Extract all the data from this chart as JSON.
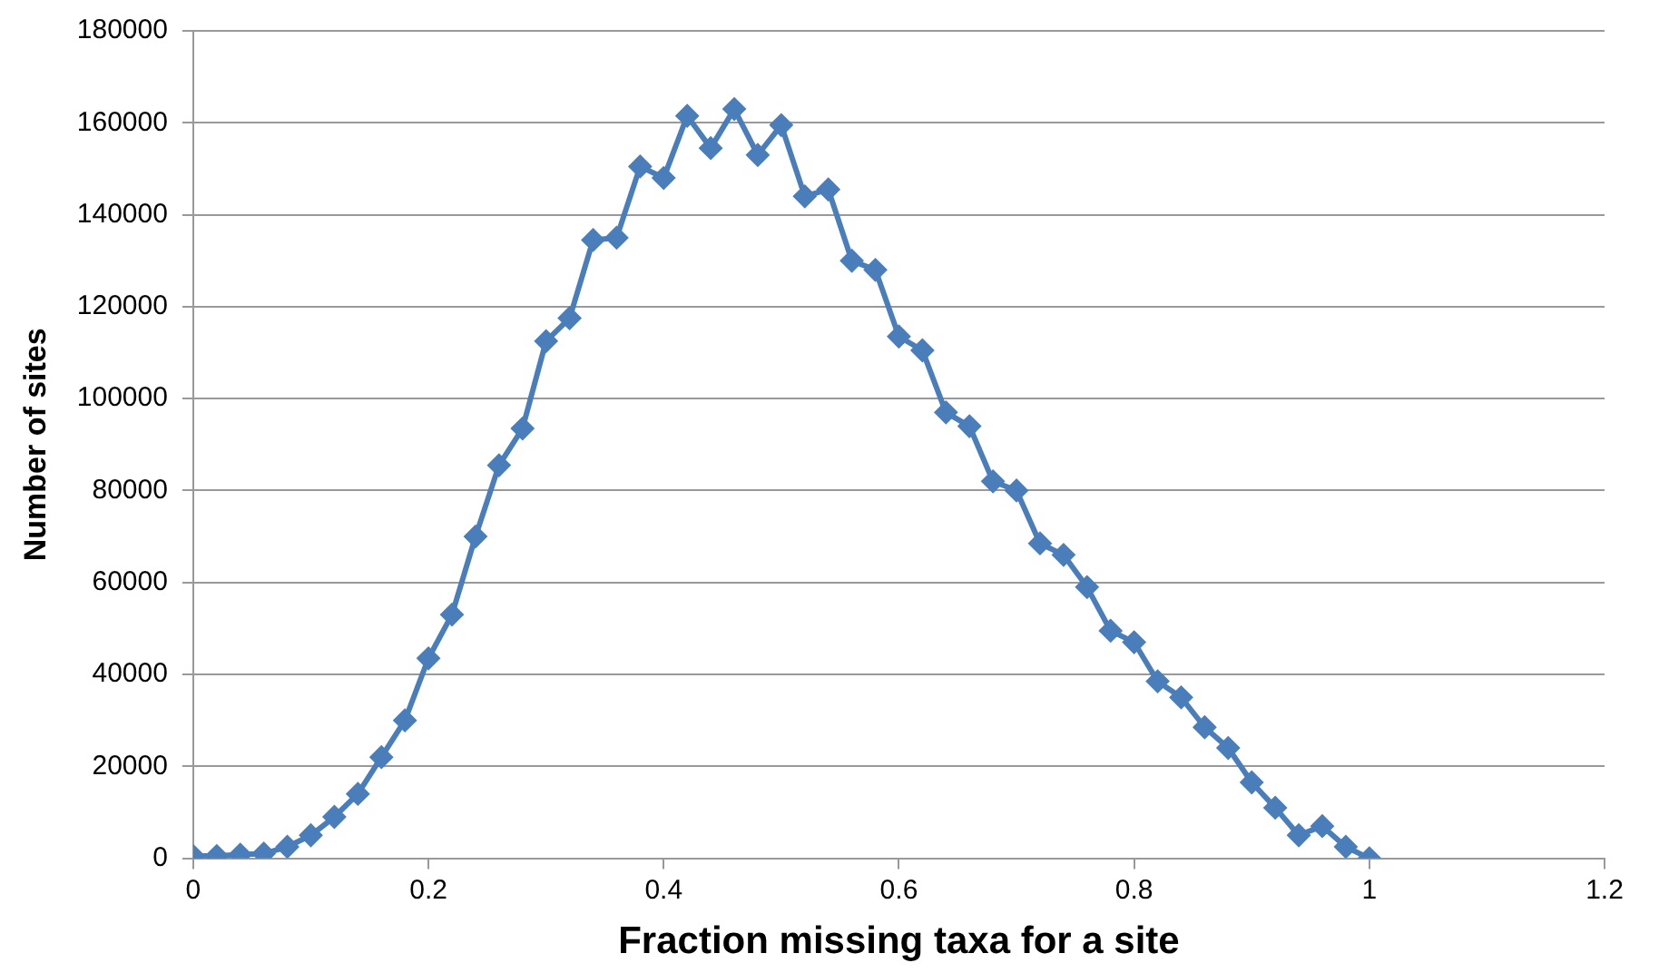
{
  "chart_data": {
    "type": "line",
    "xlabel": "Fraction missing taxa for a site",
    "ylabel": "Number of sites",
    "x": [
      0,
      0.02,
      0.04,
      0.06,
      0.08,
      0.1,
      0.12,
      0.14,
      0.16,
      0.18,
      0.2,
      0.22,
      0.24,
      0.26,
      0.28,
      0.3,
      0.32,
      0.34,
      0.36,
      0.38,
      0.4,
      0.42,
      0.44,
      0.46,
      0.48,
      0.5,
      0.52,
      0.54,
      0.56,
      0.58,
      0.6,
      0.62,
      0.64,
      0.66,
      0.68,
      0.7,
      0.72,
      0.74,
      0.76,
      0.78,
      0.8,
      0.82,
      0.84,
      0.86,
      0.88,
      0.9,
      0.92,
      0.94,
      0.96,
      0.98,
      1
    ],
    "series": [
      {
        "color": "#4a7ebb",
        "values": [
          500,
          500,
          800,
          1000,
          2500,
          5000,
          9000,
          14000,
          22000,
          30000,
          43500,
          53000,
          70000,
          85500,
          93500,
          112500,
          117500,
          134500,
          135000,
          150500,
          148000,
          161500,
          154500,
          163000,
          153000,
          159500,
          144000,
          145500,
          130000,
          128000,
          113500,
          110500,
          97000,
          94000,
          82000,
          80000,
          68500,
          66000,
          59000,
          49500,
          47000,
          38500,
          35000,
          28500,
          24000,
          16500,
          11000,
          5000,
          7000,
          2500,
          0
        ]
      }
    ],
    "xlim": [
      0,
      1.2
    ],
    "xticks": [
      0,
      0.2,
      0.4,
      0.6,
      0.8,
      1,
      1.2
    ],
    "ylim": [
      0,
      180000
    ],
    "yticks": [
      0,
      20000,
      40000,
      60000,
      80000,
      100000,
      120000,
      140000,
      160000,
      180000
    ],
    "grid": "y",
    "legend": false,
    "marker": "diamond",
    "line_style": "solid"
  }
}
